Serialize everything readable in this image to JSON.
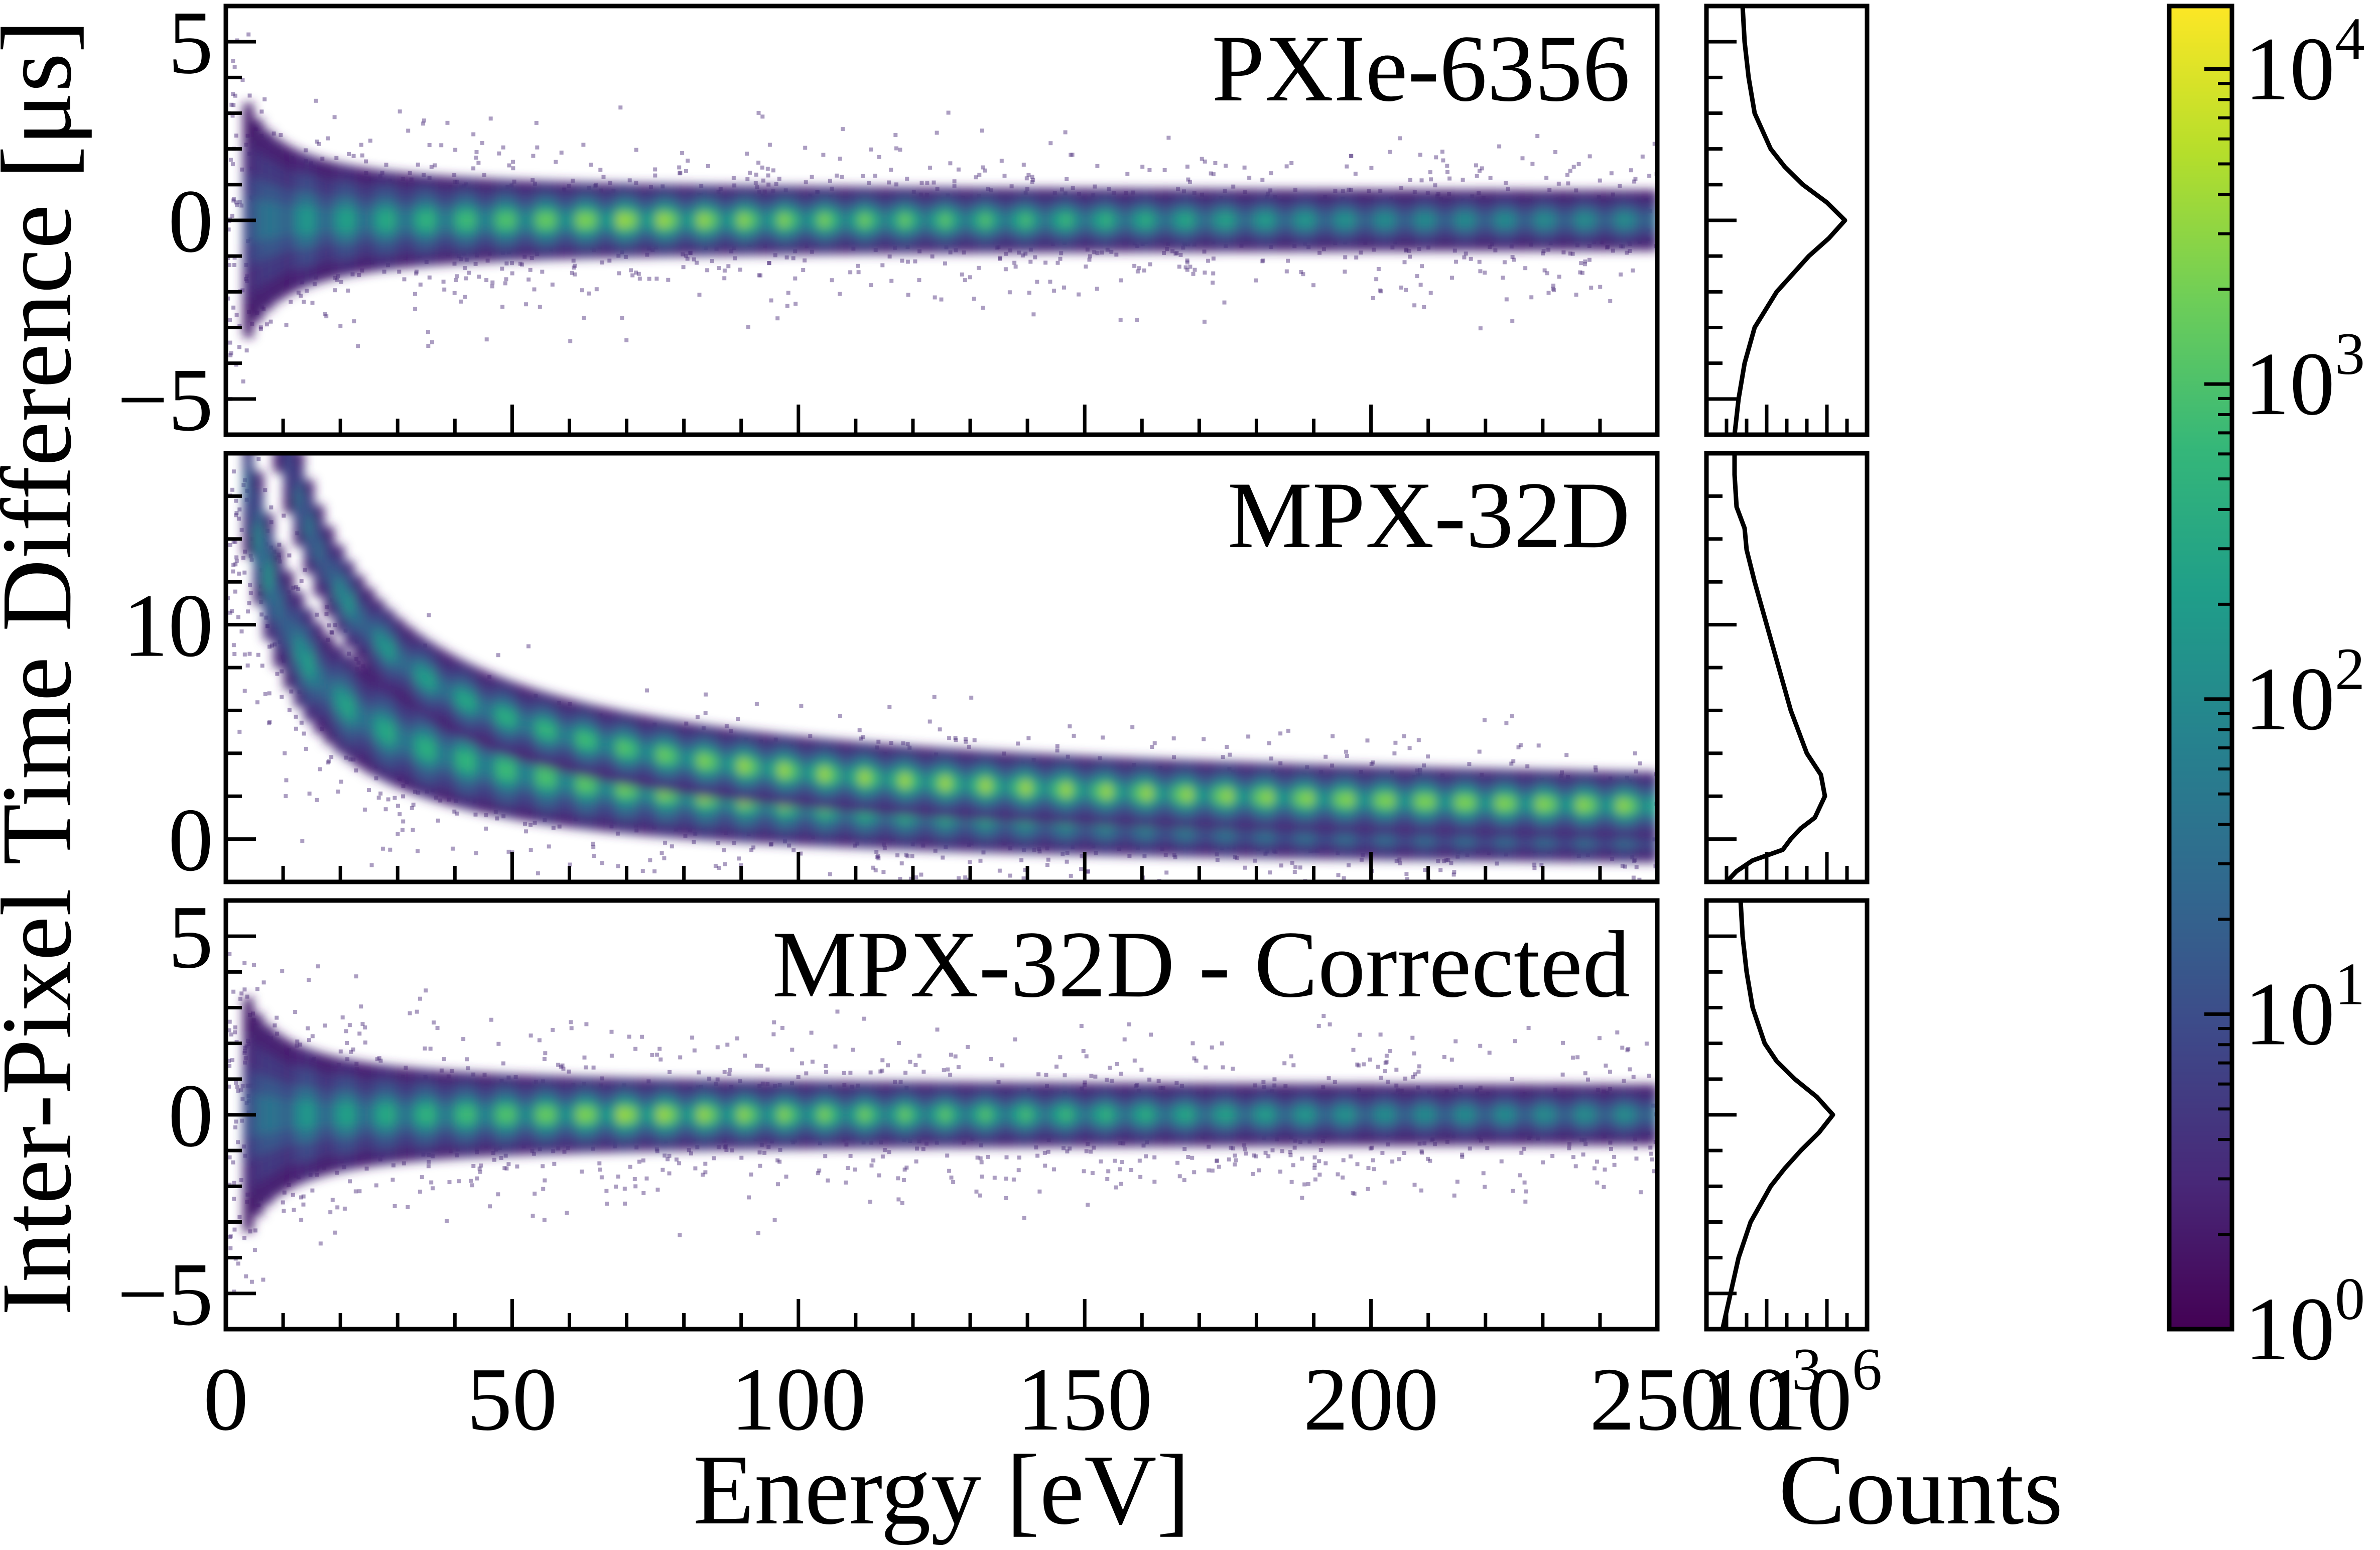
{
  "chart_data": {
    "type": "heatmap",
    "y_axis_label": "Inter-Pixel Time Difference [μs]",
    "x_axis_label": "Energy [eV]",
    "counts_axis_label": "Counts",
    "x_range": [
      0,
      250
    ],
    "x_ticks": [
      "0",
      "50",
      "100",
      "150",
      "200",
      "250"
    ],
    "counts_ticks": [
      {
        "base": "10",
        "exp": "3",
        "log_value": 3
      },
      {
        "base": "10",
        "exp": "6",
        "log_value": 6
      }
    ],
    "counts_log_range": [
      0,
      8
    ],
    "colorbar": {
      "scale": "log",
      "log_range": [
        0,
        4.2
      ],
      "ticks": [
        {
          "base": "10",
          "exp": "0",
          "log_value": 0
        },
        {
          "base": "10",
          "exp": "1",
          "log_value": 1
        },
        {
          "base": "10",
          "exp": "2",
          "log_value": 2
        },
        {
          "base": "10",
          "exp": "3",
          "log_value": 3
        },
        {
          "base": "10",
          "exp": "4",
          "log_value": 4
        }
      ],
      "colormap": [
        "#440154",
        "#482878",
        "#3e4989",
        "#31688e",
        "#26828e",
        "#1f9e89",
        "#35b779",
        "#6ece58",
        "#b5de2b",
        "#fde725"
      ]
    },
    "panels": [
      {
        "title": "PXIe-6356",
        "y_range": [
          -6,
          6
        ],
        "y_ticks": [
          "−5",
          "0",
          "5"
        ],
        "y_tick_values": [
          -5,
          0,
          5
        ],
        "band": "centered",
        "projection_log_counts": [
          [
            -6.0,
            1.4
          ],
          [
            -5.0,
            1.6
          ],
          [
            -4.0,
            1.9
          ],
          [
            -3.0,
            2.4
          ],
          [
            -2.0,
            3.5
          ],
          [
            -1.5,
            4.3
          ],
          [
            -1.0,
            5.1
          ],
          [
            -0.5,
            6.1
          ],
          [
            0.0,
            6.9
          ],
          [
            0.5,
            6.0
          ],
          [
            1.0,
            4.8
          ],
          [
            1.5,
            3.9
          ],
          [
            2.0,
            3.2
          ],
          [
            3.0,
            2.4
          ],
          [
            4.0,
            2.1
          ],
          [
            5.0,
            1.9
          ],
          [
            6.0,
            1.8
          ]
        ]
      },
      {
        "title": "MPX-32D",
        "y_range": [
          -2,
          18
        ],
        "y_ticks": [
          "0",
          "10"
        ],
        "y_tick_values": [
          0,
          10
        ],
        "band": "double_hyperbolic",
        "projection_log_counts": [
          [
            -2.0,
            1.0
          ],
          [
            -1.5,
            1.5
          ],
          [
            -1.0,
            2.3
          ],
          [
            -0.5,
            3.8
          ],
          [
            0.0,
            4.2
          ],
          [
            0.5,
            4.7
          ],
          [
            1.0,
            5.4
          ],
          [
            2.0,
            5.9
          ],
          [
            3.0,
            5.7
          ],
          [
            4.0,
            5.0
          ],
          [
            6.0,
            4.2
          ],
          [
            8.0,
            3.6
          ],
          [
            10.0,
            3.0
          ],
          [
            12.0,
            2.4
          ],
          [
            13.5,
            2.0
          ],
          [
            14.5,
            1.9
          ],
          [
            15.5,
            1.5
          ],
          [
            17.0,
            1.4
          ],
          [
            18.0,
            1.4
          ]
        ]
      },
      {
        "title": "MPX-32D - Corrected",
        "y_range": [
          -6,
          6
        ],
        "y_ticks": [
          "−5",
          "0",
          "5"
        ],
        "y_tick_values": [
          -5,
          0,
          5
        ],
        "band": "centered_corrected",
        "projection_log_counts": [
          [
            -6.0,
            0.8
          ],
          [
            -5.0,
            1.2
          ],
          [
            -4.0,
            1.6
          ],
          [
            -3.0,
            2.2
          ],
          [
            -2.0,
            3.2
          ],
          [
            -1.5,
            3.9
          ],
          [
            -1.0,
            4.7
          ],
          [
            -0.5,
            5.6
          ],
          [
            0.0,
            6.3
          ],
          [
            0.5,
            5.5
          ],
          [
            1.0,
            4.4
          ],
          [
            1.5,
            3.5
          ],
          [
            2.0,
            2.9
          ],
          [
            3.0,
            2.3
          ],
          [
            4.0,
            2.0
          ],
          [
            5.0,
            1.8
          ],
          [
            6.0,
            1.7
          ]
        ]
      }
    ]
  }
}
